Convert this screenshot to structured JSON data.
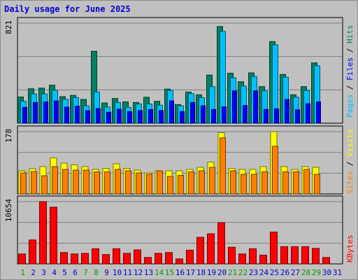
{
  "title": "Daily usage for June 2025",
  "colors": {
    "background": "#c0c0c0",
    "hits": "#00c0ff",
    "files": "#0000ff",
    "pages": "#008060",
    "visits": "#ffff00",
    "sites": "#ff8000",
    "kbytes": "#ff0000",
    "title": "#0000d0",
    "weekend": "#00a000",
    "weekday": "#0000d0"
  },
  "right_labels": {
    "pages": "Pages",
    "files": "Files",
    "hits": "Hits",
    "sep1": " / ",
    "sep2": " / ",
    "sites": "Sites",
    "visits": "Visits",
    "sep3": " / ",
    "kbytes": "KBytes"
  },
  "chart_data": [
    {
      "type": "bar",
      "panel": "top",
      "ymax_label": "821",
      "ylim": [
        0,
        821
      ],
      "categories": [
        "1",
        "2",
        "3",
        "4",
        "5",
        "6",
        "7",
        "8",
        "9",
        "10",
        "11",
        "12",
        "13",
        "14",
        "15",
        "16",
        "17",
        "18",
        "19",
        "20",
        "21",
        "22",
        "23",
        "24",
        "25",
        "26",
        "27",
        "28",
        "29",
        "30",
        "31"
      ],
      "weekend_days": [
        1,
        7,
        8,
        14,
        15,
        21,
        22,
        28,
        29
      ],
      "series": [
        {
          "name": "Pages",
          "values": [
            215,
            283,
            288,
            312,
            218,
            228,
            195,
            590,
            166,
            203,
            175,
            170,
            213,
            180,
            280,
            153,
            255,
            233,
            395,
            793,
            410,
            340,
            413,
            300,
            670,
            400,
            233,
            300,
            495,
            0,
            0
          ]
        },
        {
          "name": "Hits",
          "values": [
            180,
            240,
            240,
            270,
            196,
            210,
            143,
            256,
            133,
            170,
            130,
            158,
            158,
            148,
            268,
            143,
            243,
            210,
            300,
            753,
            372,
            305,
            383,
            265,
            643,
            378,
            213,
            268,
            471,
            0,
            0
          ]
        },
        {
          "name": "Files",
          "values": [
            130,
            170,
            175,
            183,
            132,
            140,
            103,
            120,
            90,
            115,
            95,
            104,
            112,
            104,
            183,
            95,
            170,
            143,
            113,
            135,
            265,
            145,
            265,
            113,
            118,
            195,
            110,
            160,
            175,
            0,
            0
          ]
        }
      ]
    },
    {
      "type": "bar",
      "panel": "middle",
      "ymax_label": "178",
      "ylim": [
        0,
        178
      ],
      "categories": [
        "1",
        "2",
        "3",
        "4",
        "5",
        "6",
        "7",
        "8",
        "9",
        "10",
        "11",
        "12",
        "13",
        "14",
        "15",
        "16",
        "17",
        "18",
        "19",
        "20",
        "21",
        "22",
        "23",
        "24",
        "25",
        "26",
        "27",
        "28",
        "29",
        "30",
        "31"
      ],
      "series": [
        {
          "name": "Visits",
          "values": [
            66,
            72,
            78,
            103,
            88,
            83,
            78,
            70,
            73,
            86,
            73,
            68,
            60,
            66,
            66,
            66,
            70,
            76,
            91,
            175,
            73,
            70,
            70,
            78,
            178,
            78,
            70,
            78,
            76,
            0,
            0
          ]
        },
        {
          "name": "Sites",
          "values": [
            60,
            64,
            52,
            78,
            70,
            68,
            68,
            63,
            63,
            70,
            66,
            60,
            56,
            66,
            50,
            53,
            63,
            66,
            76,
            160,
            66,
            56,
            56,
            63,
            136,
            63,
            63,
            70,
            56,
            0,
            0
          ]
        }
      ]
    },
    {
      "type": "bar",
      "panel": "bottom",
      "ymax_label": "10654",
      "ylim": [
        0,
        10654
      ],
      "categories": [
        "1",
        "2",
        "3",
        "4",
        "5",
        "6",
        "7",
        "8",
        "9",
        "10",
        "11",
        "12",
        "13",
        "14",
        "15",
        "16",
        "17",
        "18",
        "19",
        "20",
        "21",
        "22",
        "23",
        "24",
        "25",
        "26",
        "27",
        "28",
        "29",
        "30",
        "31"
      ],
      "series": [
        {
          "name": "KBytes",
          "values": [
            1700,
            4100,
            10654,
            9700,
            1950,
            1700,
            1800,
            2600,
            1600,
            2600,
            1800,
            2400,
            1100,
            1800,
            1950,
            850,
            2350,
            4550,
            5150,
            7050,
            2850,
            1700,
            2600,
            1500,
            5450,
            2950,
            2950,
            2950,
            2650,
            1100,
            0
          ]
        }
      ]
    }
  ]
}
